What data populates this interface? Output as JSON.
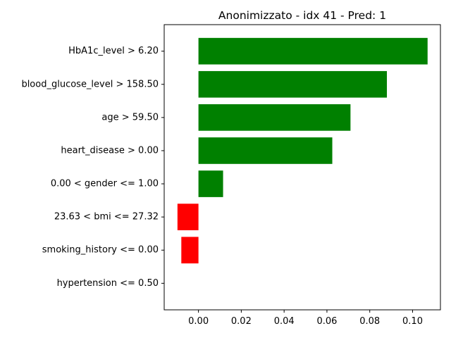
{
  "chart_data": {
    "type": "bar",
    "orientation": "horizontal",
    "title": "Anonimizzato - idx 41 - Pred: 1",
    "xlabel": "",
    "ylabel": "",
    "categories": [
      "HbA1c_level > 6.20",
      "blood_glucose_level > 158.50",
      "age > 59.50",
      "heart_disease > 0.00",
      "0.00 < gender <= 1.00",
      "23.63 < bmi <= 27.32",
      "smoking_history <= 0.00",
      "hypertension <= 0.50"
    ],
    "values": [
      0.107,
      0.088,
      0.071,
      0.0625,
      0.0115,
      -0.0098,
      -0.008,
      0.0
    ],
    "colors": [
      "#008000",
      "#008000",
      "#008000",
      "#008000",
      "#008000",
      "#ff0000",
      "#ff0000",
      "#008000"
    ],
    "xlim": [
      -0.016,
      0.113
    ],
    "xticks": [
      0.0,
      0.02,
      0.04,
      0.06,
      0.08,
      0.1
    ],
    "xtick_labels": [
      "0.00",
      "0.02",
      "0.04",
      "0.06",
      "0.08",
      "0.10"
    ],
    "grid": false,
    "legend": "none"
  }
}
